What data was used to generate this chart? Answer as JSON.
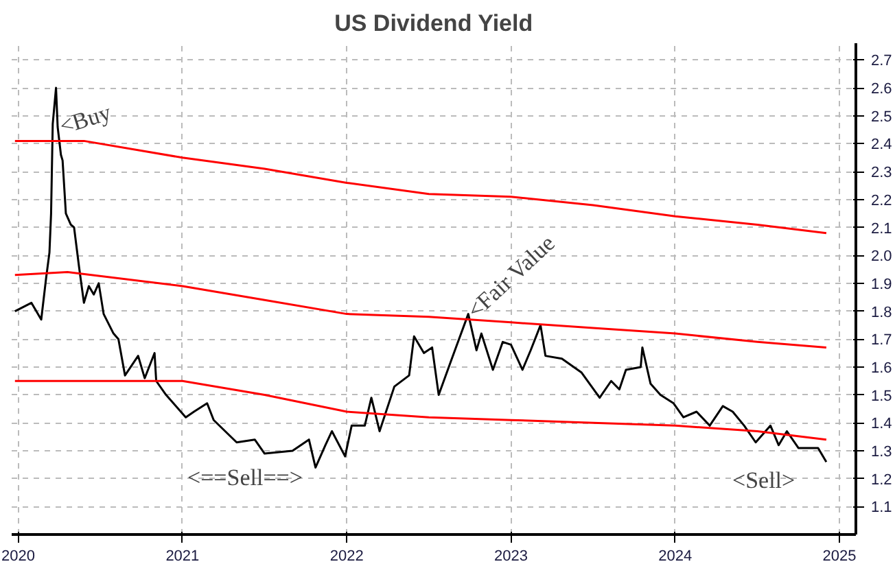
{
  "chart_data": {
    "type": "line",
    "title": "US Dividend Yield",
    "series": [
      {
        "color": "#000000",
        "x": [
          2019.98,
          2020.08,
          2020.14,
          2020.17,
          2020.19,
          2020.2,
          2020.21,
          2020.23,
          2020.24,
          2020.26,
          2020.27,
          2020.29,
          2020.32,
          2020.34,
          2020.37,
          2020.4,
          2020.43,
          2020.46,
          2020.49,
          2020.52,
          2020.58,
          2020.61,
          2020.65,
          2020.73,
          2020.77,
          2020.83,
          2020.84,
          2020.9,
          2021.02,
          2021.07,
          2021.15,
          2021.19,
          2021.33,
          2021.44,
          2021.5,
          2021.67,
          2021.77,
          2021.81,
          2021.87,
          2021.91,
          2021.99,
          2022.03,
          2022.11,
          2022.15,
          2022.2,
          2022.29,
          2022.38,
          2022.41,
          2022.47,
          2022.52,
          2022.56,
          2022.64,
          2022.74,
          2022.79,
          2022.82,
          2022.89,
          2022.95,
          2023.0,
          2023.07,
          2023.12,
          2023.18,
          2023.21,
          2023.31,
          2023.43,
          2023.54,
          2023.61,
          2023.66,
          2023.7,
          2023.79,
          2023.8,
          2023.85,
          2023.91,
          2023.99,
          2024.05,
          2024.13,
          2024.21,
          2024.29,
          2024.35,
          2024.42,
          2024.49,
          2024.58,
          2024.63,
          2024.68,
          2024.75,
          2024.87,
          2024.92
        ],
        "values": [
          1.8,
          1.83,
          1.77,
          1.92,
          2.01,
          2.15,
          2.47,
          2.6,
          2.46,
          2.36,
          2.34,
          2.15,
          2.11,
          2.1,
          1.96,
          1.83,
          1.89,
          1.86,
          1.9,
          1.79,
          1.72,
          1.7,
          1.57,
          1.64,
          1.56,
          1.65,
          1.55,
          1.5,
          1.42,
          1.44,
          1.47,
          1.41,
          1.33,
          1.34,
          1.29,
          1.3,
          1.34,
          1.24,
          1.32,
          1.37,
          1.28,
          1.39,
          1.39,
          1.49,
          1.37,
          1.53,
          1.57,
          1.71,
          1.65,
          1.67,
          1.5,
          1.63,
          1.79,
          1.66,
          1.72,
          1.59,
          1.69,
          1.68,
          1.59,
          1.66,
          1.75,
          1.64,
          1.63,
          1.58,
          1.49,
          1.55,
          1.52,
          1.59,
          1.6,
          1.67,
          1.54,
          1.5,
          1.47,
          1.42,
          1.44,
          1.39,
          1.46,
          1.44,
          1.39,
          1.33,
          1.39,
          1.32,
          1.37,
          1.31,
          1.31,
          1.26
        ]
      },
      {
        "color": "#ff0000",
        "x": [
          2019.98,
          2020.4,
          2021.0,
          2021.5,
          2022.0,
          2022.5,
          2023.0,
          2023.5,
          2024.0,
          2024.5,
          2024.92
        ],
        "values": [
          2.41,
          2.41,
          2.35,
          2.31,
          2.26,
          2.22,
          2.21,
          2.18,
          2.14,
          2.11,
          2.08
        ]
      },
      {
        "color": "#ff0000",
        "x": [
          2019.98,
          2020.3,
          2021.0,
          2021.5,
          2022.0,
          2022.5,
          2023.0,
          2023.5,
          2024.0,
          2024.5,
          2024.92
        ],
        "values": [
          1.93,
          1.94,
          1.89,
          1.84,
          1.79,
          1.78,
          1.76,
          1.74,
          1.72,
          1.69,
          1.67
        ]
      },
      {
        "color": "#ff0000",
        "x": [
          2019.98,
          2021.0,
          2021.5,
          2022.0,
          2022.5,
          2023.0,
          2023.5,
          2024.0,
          2024.5,
          2024.92
        ],
        "values": [
          1.55,
          1.55,
          1.5,
          1.44,
          1.42,
          1.41,
          1.4,
          1.39,
          1.37,
          1.34
        ]
      }
    ],
    "annotations": [
      {
        "text": "<Buy",
        "x": 2020.24,
        "y": 2.46
      },
      {
        "text": "<Fair Value",
        "x": 2022.74,
        "y": 1.79
      },
      "<==Sell==>",
      "<Sell>"
    ],
    "xlim": [
      2019.96,
      2025.1
    ],
    "xticks": [
      2020,
      2021,
      2022,
      2023,
      2024,
      2025
    ],
    "ylim": [
      1.0,
      2.76
    ],
    "yticks": [
      1.1,
      1.2,
      1.3,
      1.4,
      1.5,
      1.6,
      1.7,
      1.8,
      1.9,
      {
        "value": 2.0,
        "label": "2.0"
      },
      2.1,
      2.2,
      2.3,
      2.4,
      2.5,
      2.6,
      2.7
    ],
    "grid": true,
    "line_style": "solid"
  }
}
